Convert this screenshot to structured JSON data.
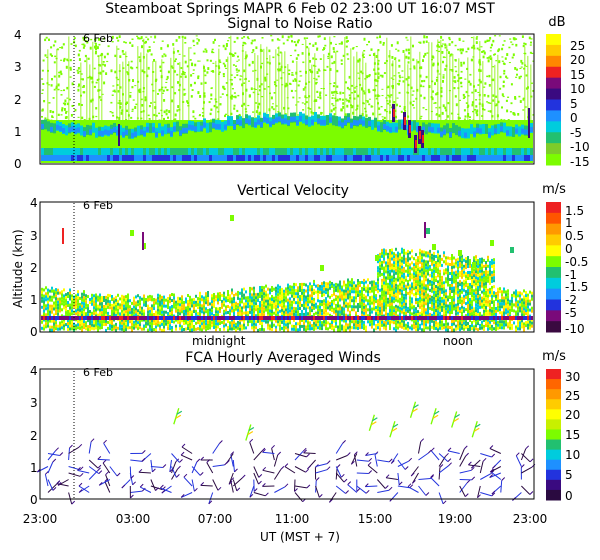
{
  "header": {
    "title": "Steamboat Springs   MAPR   6 Feb 02   23:00 UT   16:07   MST"
  },
  "chart_data": [
    {
      "type": "heatmap",
      "title": "Signal to Noise Ratio",
      "units": "dB",
      "ylabel": "",
      "ylim": [
        0,
        4
      ],
      "yticks": [
        "0",
        "1",
        "2",
        "3",
        "4"
      ],
      "date_marker": "6 Feb",
      "colorbar": {
        "labels": [
          "25",
          "20",
          "15",
          "10",
          "5",
          "0",
          "-5",
          "-10",
          "-15"
        ],
        "colors": [
          "#ffff00",
          "#ffcc00",
          "#ff8800",
          "#ee2222",
          "#7a0a7a",
          "#3a0a80",
          "#2233dd",
          "#1e90ff",
          "#00ccdd",
          "#22c070",
          "#7dcc2a",
          "#7cfc00"
        ]
      }
    },
    {
      "type": "heatmap",
      "title": "Vertical Velocity",
      "units": "m/s",
      "ylabel": "Altitude (km)",
      "ylim": [
        0,
        4
      ],
      "yticks": [
        "0",
        "1",
        "2",
        "3",
        "4"
      ],
      "date_marker": "6 Feb",
      "time_annotations": [
        "midnight",
        "noon"
      ],
      "colorbar": {
        "labels": [
          "1.5",
          "1",
          "0.5",
          "0",
          "-0.5",
          "-1",
          "-1.5",
          "-2",
          "-5",
          "-10"
        ],
        "colors": [
          "#ee2222",
          "#ff5500",
          "#ff9900",
          "#ffcc00",
          "#ffff00",
          "#7cfc00",
          "#22c070",
          "#00ccdd",
          "#1e90ff",
          "#2233dd",
          "#7a0a7a",
          "#3a0a40"
        ]
      }
    },
    {
      "type": "scatter",
      "title": "FCA Hourly Averaged Winds",
      "units": "m/s",
      "ylabel": "",
      "ylim": [
        0,
        4
      ],
      "yticks": [
        "0",
        "1",
        "2",
        "3",
        "4"
      ],
      "date_marker": "6 Feb",
      "xlabel": "UT   (MST + 7)",
      "xticks": [
        "23:00",
        "03:00",
        "07:00",
        "11:00",
        "15:00",
        "19:00",
        "23:00"
      ],
      "colorbar": {
        "labels": [
          "30",
          "25",
          "20",
          "15",
          "10",
          "5",
          "0"
        ],
        "colors": [
          "#ee2222",
          "#ff6600",
          "#ff9900",
          "#ffcc00",
          "#ffff00",
          "#c8f000",
          "#7cfc00",
          "#22c070",
          "#00ccdd",
          "#1e90ff",
          "#2233dd",
          "#3a0a80",
          "#2a0a40"
        ]
      },
      "barb_altitudes_km": [
        0.2,
        0.4,
        0.6,
        0.8,
        1.0,
        1.2,
        1.4
      ],
      "upper_barbs": [
        {
          "hour": 6.5,
          "alt": 2.3
        },
        {
          "hour": 10,
          "alt": 1.8
        },
        {
          "hour": 16,
          "alt": 2.1
        },
        {
          "hour": 17,
          "alt": 1.9
        },
        {
          "hour": 18,
          "alt": 2.5
        },
        {
          "hour": 19,
          "alt": 2.3
        },
        {
          "hour": 20,
          "alt": 2.2
        },
        {
          "hour": 21,
          "alt": 1.9
        }
      ]
    }
  ]
}
